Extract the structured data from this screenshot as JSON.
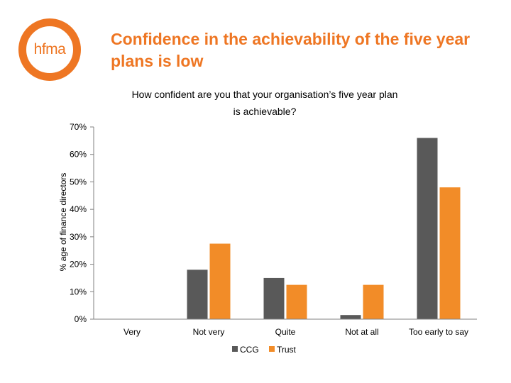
{
  "logo": {
    "text": "hfma",
    "color": "#ee7623"
  },
  "slide": {
    "title_line1": "Confidence in the achievability of the five year",
    "title_line2": "plans is low"
  },
  "chart_data": {
    "type": "bar",
    "title_line1": "How confident are you that your organisation’s five year plan",
    "title_line2": "is achievable?",
    "xlabel": "",
    "ylabel": "% age of finance directors",
    "ylim": [
      0,
      70
    ],
    "yticks": [
      0,
      10,
      20,
      30,
      40,
      50,
      60,
      70
    ],
    "ytick_labels": [
      "0%",
      "10%",
      "20%",
      "30%",
      "40%",
      "50%",
      "60%",
      "70%"
    ],
    "grid": false,
    "legend_position": "bottom",
    "categories": [
      "Very",
      "Not very",
      "Quite",
      "Not at all",
      "Too early to say"
    ],
    "series": [
      {
        "name": "CCG",
        "color": "#595959",
        "values": [
          0,
          18,
          15,
          1.5,
          66
        ]
      },
      {
        "name": "Trust",
        "color": "#f28c28",
        "values": [
          0,
          27.5,
          12.5,
          12.5,
          48
        ]
      }
    ]
  }
}
